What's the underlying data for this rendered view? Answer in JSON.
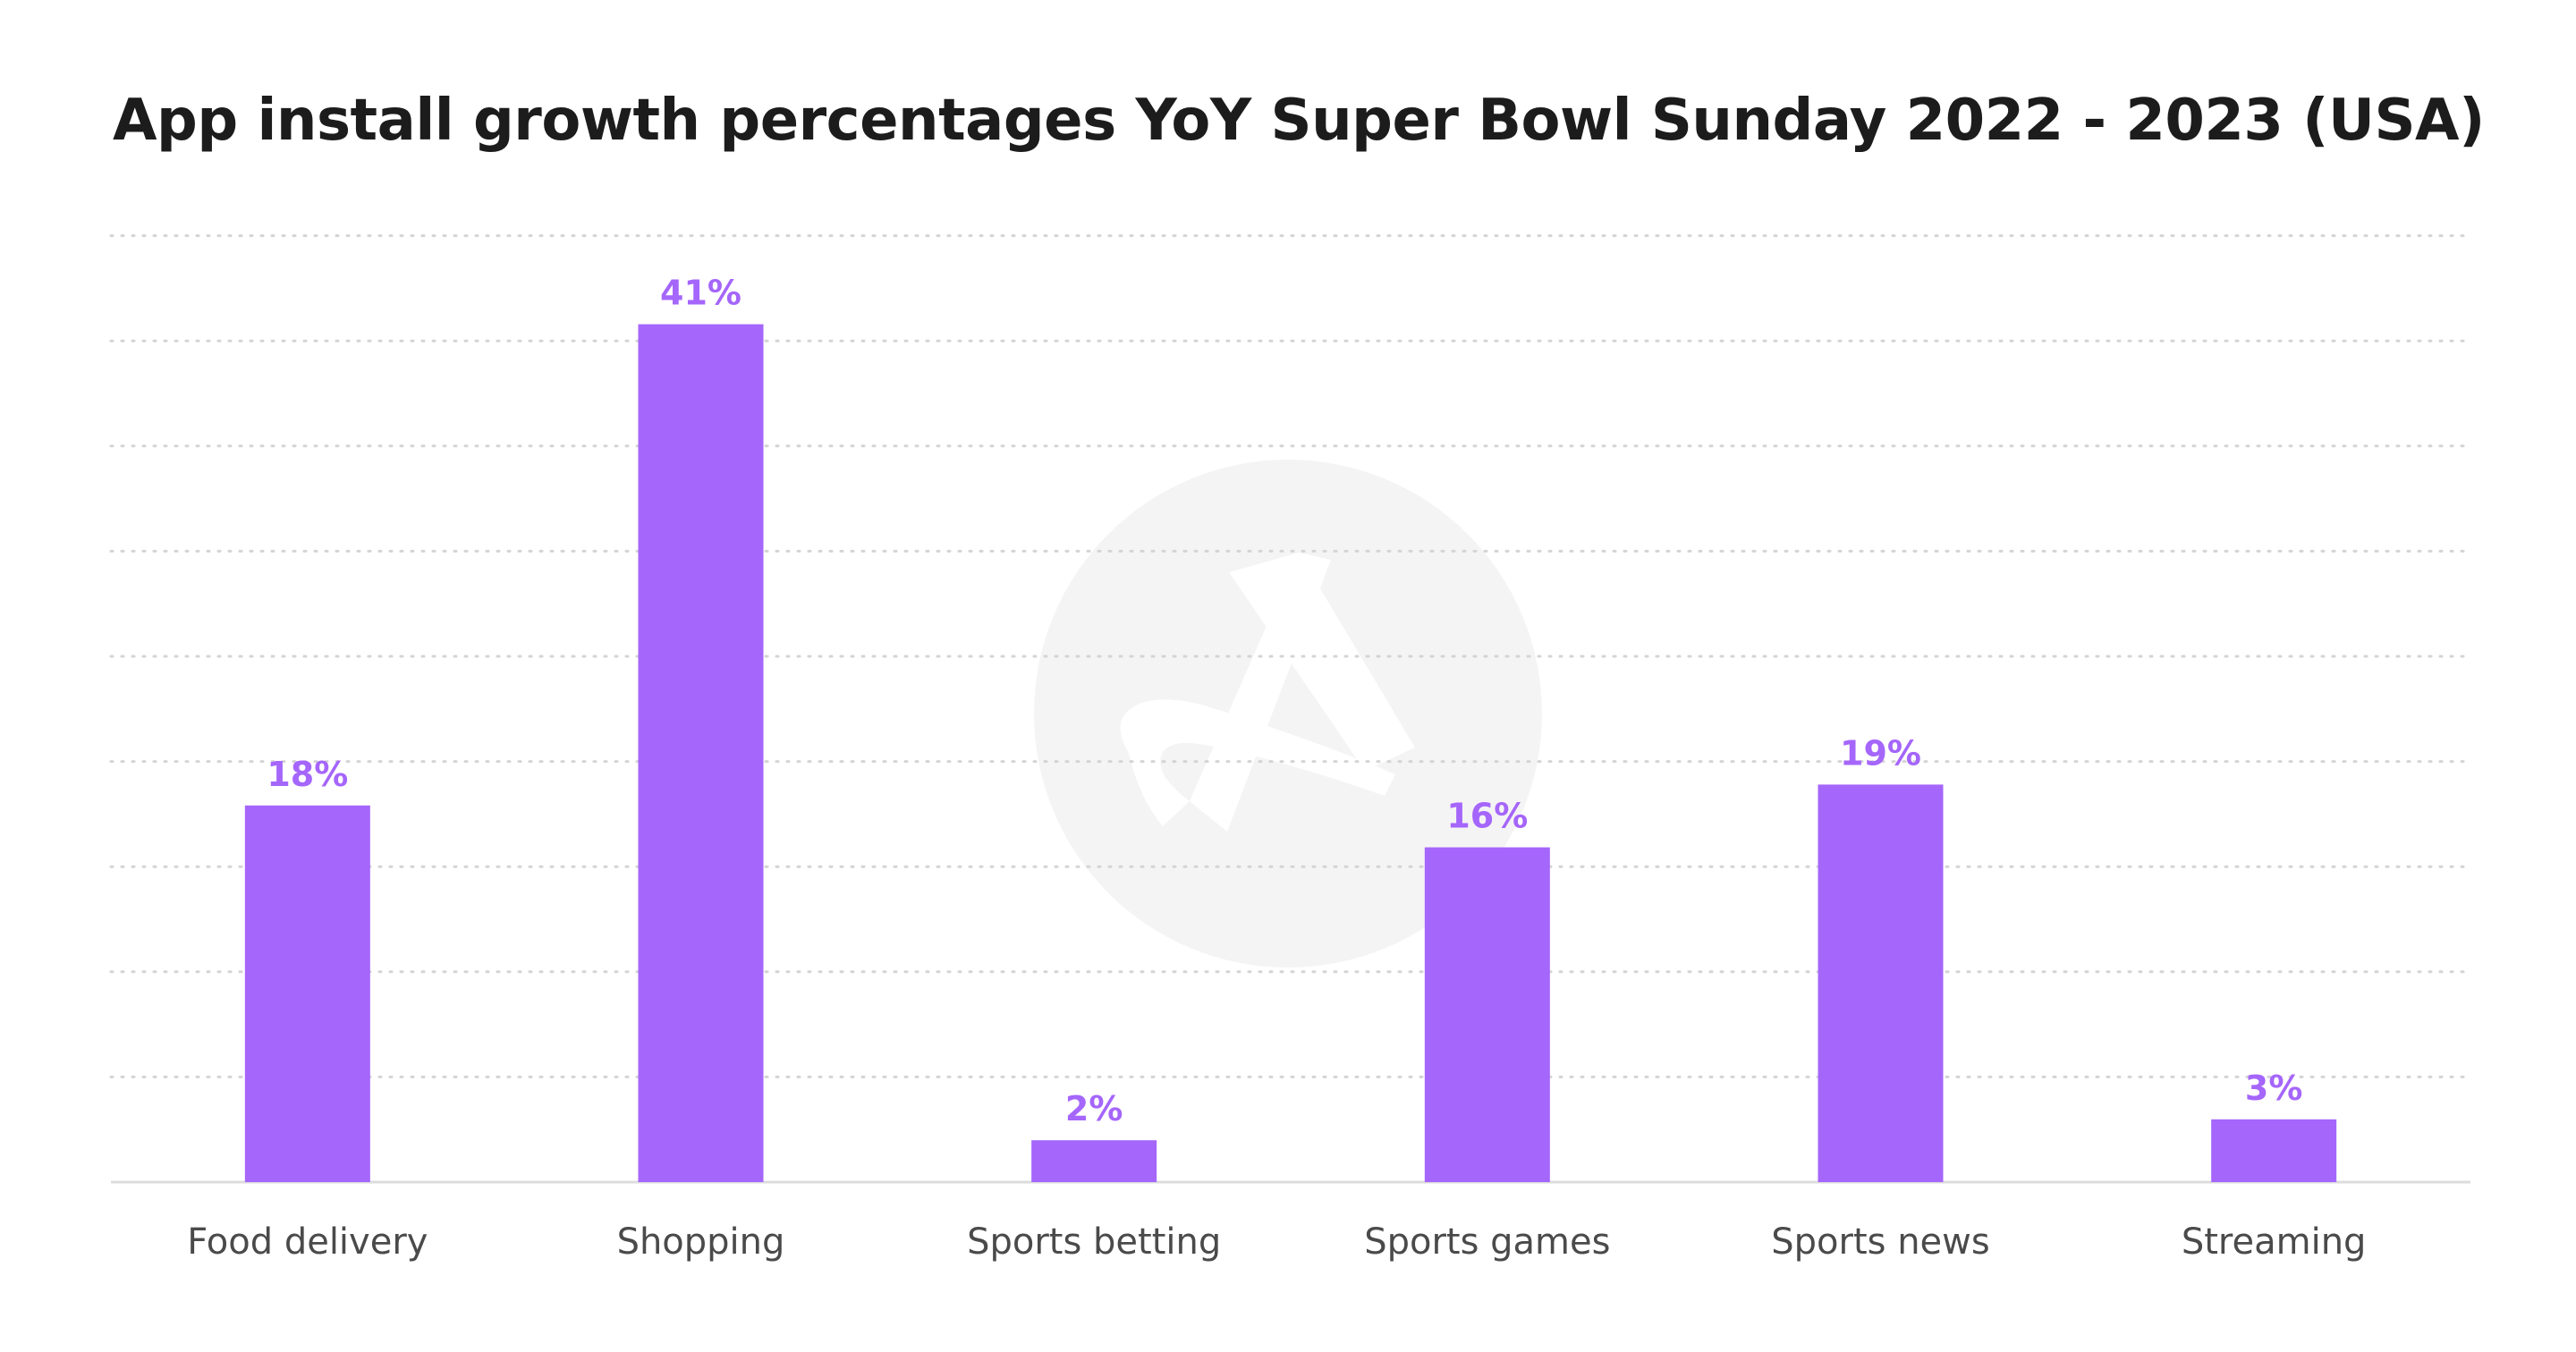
{
  "page": {
    "title": "App install growth percentages YoY Super Bowl Sunday 2022 - 2023 (USA)"
  },
  "colors": {
    "bar": "#a566fb",
    "bar_label": "#a566fb",
    "grid": "#d4d4d4",
    "baseline": "#dcdcdc",
    "watermark": "#f4f4f4"
  },
  "watermark": {
    "icon": "brand-logo-icon"
  },
  "chart_data": {
    "type": "bar",
    "title": "App install growth percentages YoY Super Bowl Sunday 2022 - 2023 (USA)",
    "categories": [
      "Food delivery",
      "Shopping",
      "Sports betting",
      "Sports games",
      "Sports news",
      "Streaming"
    ],
    "values": [
      18,
      41,
      2,
      16,
      19,
      3
    ],
    "value_labels": [
      "18%",
      "41%",
      "2%",
      "16%",
      "19%",
      "3%"
    ],
    "unit": "%",
    "xlabel": "",
    "ylabel": "",
    "ylim": [
      0,
      45
    ],
    "grid": true,
    "grid_style": "dotted",
    "legend": "none"
  }
}
